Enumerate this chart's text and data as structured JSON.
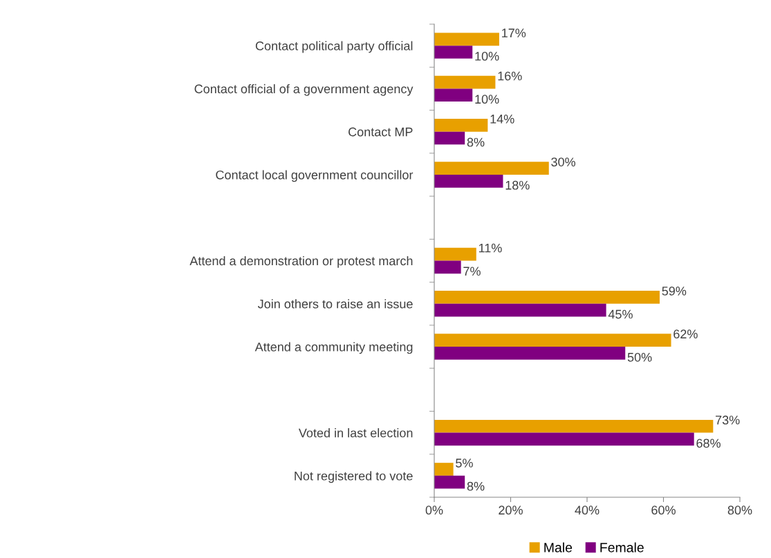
{
  "chart_data": {
    "type": "bar",
    "orientation": "horizontal",
    "categories": [
      "Contact political party official",
      "Contact official of a government agency",
      "Contact MP",
      "Contact local government councillor",
      null,
      "Attend a demonstration or protest march",
      "Join others to raise an issue",
      "Attend a community meeting",
      null,
      "Voted in last election",
      "Not registered to vote"
    ],
    "series": [
      {
        "name": "Male",
        "color": "#e8a000",
        "values": [
          17,
          16,
          14,
          30,
          null,
          11,
          59,
          62,
          null,
          73,
          5
        ],
        "value_labels": [
          "17%",
          "16%",
          "14%",
          "30%",
          null,
          "11%",
          "59%",
          "62%",
          null,
          "73%",
          "5%"
        ]
      },
      {
        "name": "Female",
        "color": "#800080",
        "values": [
          10,
          10,
          8,
          18,
          null,
          7,
          45,
          50,
          null,
          68,
          8
        ],
        "value_labels": [
          "10%",
          "10%",
          "8%",
          "18%",
          null,
          "7%",
          "45%",
          "50%",
          null,
          "68%",
          "8%"
        ]
      }
    ],
    "xlim": [
      0,
      80
    ],
    "xticks": [
      {
        "value": 0,
        "label": "0%"
      },
      {
        "value": 20,
        "label": "20%"
      },
      {
        "value": 40,
        "label": "40%"
      },
      {
        "value": 60,
        "label": "60%"
      },
      {
        "value": 80,
        "label": "80%"
      }
    ],
    "grid": false,
    "legend": "bottom"
  }
}
